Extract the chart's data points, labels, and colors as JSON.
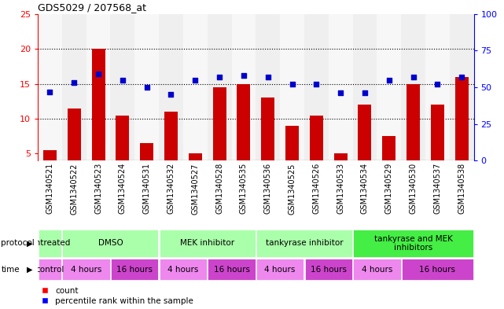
{
  "title": "GDS5029 / 207568_at",
  "samples": [
    "GSM1340521",
    "GSM1340522",
    "GSM1340523",
    "GSM1340524",
    "GSM1340531",
    "GSM1340532",
    "GSM1340527",
    "GSM1340528",
    "GSM1340535",
    "GSM1340536",
    "GSM1340525",
    "GSM1340526",
    "GSM1340533",
    "GSM1340534",
    "GSM1340529",
    "GSM1340530",
    "GSM1340537",
    "GSM1340538"
  ],
  "counts": [
    5.5,
    11.5,
    20.0,
    10.5,
    6.5,
    11.0,
    5.0,
    14.5,
    15.0,
    13.0,
    9.0,
    10.5,
    5.0,
    12.0,
    7.5,
    15.0,
    12.0,
    16.0
  ],
  "percentiles_pct": [
    47,
    53,
    59,
    55,
    50,
    45,
    55,
    57,
    58,
    57,
    52,
    52,
    46,
    46,
    55,
    57,
    52,
    57
  ],
  "bar_color": "#cc0000",
  "dot_color": "#0000cc",
  "ylim_left": [
    4,
    25
  ],
  "ylim_right": [
    0,
    100
  ],
  "yticks_left": [
    5,
    10,
    15,
    20,
    25
  ],
  "yticks_right": [
    0,
    25,
    50,
    75,
    100
  ],
  "protocol_groups": [
    {
      "label": "untreated",
      "start": 0,
      "end": 1
    },
    {
      "label": "DMSO",
      "start": 1,
      "end": 5
    },
    {
      "label": "MEK inhibitor",
      "start": 5,
      "end": 9
    },
    {
      "label": "tankyrase inhibitor",
      "start": 9,
      "end": 13
    },
    {
      "label": "tankyrase and MEK\ninhibitors",
      "start": 13,
      "end": 18
    }
  ],
  "protocol_colors": [
    "#aaffaa",
    "#aaffaa",
    "#aaffaa",
    "#aaffaa",
    "#44ee44"
  ],
  "time_groups": [
    {
      "label": "control",
      "start": 0,
      "end": 1
    },
    {
      "label": "4 hours",
      "start": 1,
      "end": 3
    },
    {
      "label": "16 hours",
      "start": 3,
      "end": 5
    },
    {
      "label": "4 hours",
      "start": 5,
      "end": 7
    },
    {
      "label": "16 hours",
      "start": 7,
      "end": 9
    },
    {
      "label": "4 hours",
      "start": 9,
      "end": 11
    },
    {
      "label": "16 hours",
      "start": 11,
      "end": 13
    },
    {
      "label": "4 hours",
      "start": 13,
      "end": 15
    },
    {
      "label": "16 hours",
      "start": 15,
      "end": 18
    }
  ],
  "time_colors_light": "#ee88ee",
  "time_colors_dark": "#cc44cc",
  "grid_color": "#dddddd",
  "col_bg_light": "#f0f0f0",
  "col_bg_dark": "#e0e0e0"
}
